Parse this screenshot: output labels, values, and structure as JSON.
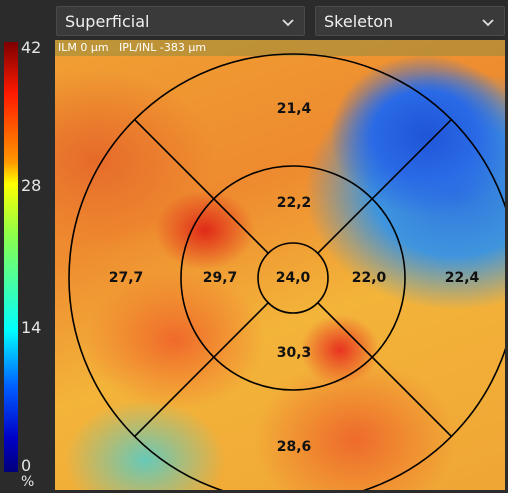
{
  "selectors": {
    "layer": "Superficial",
    "view": "Skeleton"
  },
  "colorbar": {
    "ticks": [
      "42",
      "28",
      "14",
      "0"
    ],
    "unit": "%"
  },
  "map": {
    "layer_info": "ILM 0 µm   IPL/INL -383 µm",
    "sectors": {
      "center": "24,0",
      "inner_superior": "22,2",
      "inner_nasal": "22,0",
      "inner_inferior": "30,3",
      "inner_temporal": "29,7",
      "outer_superior": "21,4",
      "outer_nasal": "22,4",
      "outer_inferior": "28,6",
      "outer_temporal": "27,7"
    }
  }
}
